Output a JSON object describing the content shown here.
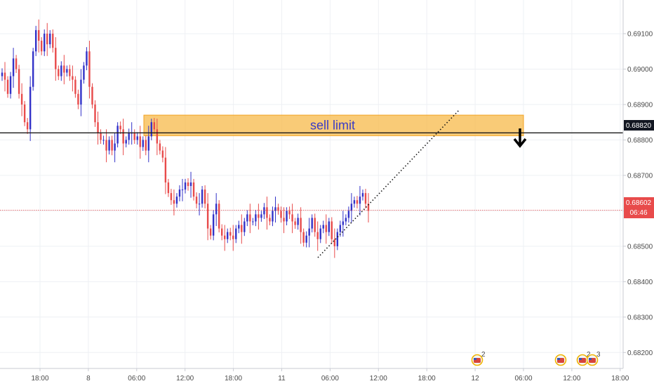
{
  "chart_data": {
    "type": "candlestick",
    "title": "",
    "xlabel": "",
    "ylabel": "",
    "ylim": [
      0.68155,
      0.69195
    ],
    "grid": true,
    "y_ticks": [
      "0.69100",
      "0.69000",
      "0.68900",
      "0.68800",
      "0.68700",
      "0.68600",
      "0.68500",
      "0.68400",
      "0.68300",
      "0.68200"
    ],
    "x_ticks": [
      "18:00",
      "8",
      "06:00",
      "12:00",
      "18:00",
      "11",
      "06:00",
      "12:00",
      "18:00",
      "12",
      "06:00",
      "12:00",
      "18:00"
    ],
    "horizontal_line": {
      "value": 0.6882,
      "label": "0.68820"
    },
    "current_price": {
      "value": 0.68602,
      "label": "0.68602",
      "countdown": "06:46"
    },
    "sell_zone": {
      "label": "sell limit",
      "from": 0.68812,
      "to": 0.6887
    },
    "trendline": {
      "style": "dotted"
    },
    "arrow": {
      "direction": "down"
    },
    "bull_color": "#3232c8",
    "bear_color": "#e84b4b",
    "closes": [
      0.6899,
      0.6897,
      0.6893,
      0.6898,
      0.6903,
      0.69,
      0.6893,
      0.689,
      0.6885,
      0.6883,
      0.6895,
      0.6905,
      0.6911,
      0.6908,
      0.6905,
      0.691,
      0.6907,
      0.691,
      0.6906,
      0.69,
      0.6898,
      0.6901,
      0.6899,
      0.69,
      0.6898,
      0.6897,
      0.6893,
      0.689,
      0.6897,
      0.6901,
      0.6905,
      0.6895,
      0.689,
      0.6885,
      0.6882,
      0.688,
      0.688,
      0.6877,
      0.688,
      0.6877,
      0.6879,
      0.6884,
      0.6883,
      0.6879,
      0.688,
      0.6882,
      0.6882,
      0.688,
      0.6881,
      0.6878,
      0.688,
      0.6877,
      0.6881,
      0.6885,
      0.6883,
      0.6879,
      0.6877,
      0.6875,
      0.6868,
      0.6865,
      0.6863,
      0.6862,
      0.6864,
      0.6866,
      0.6866,
      0.6868,
      0.6867,
      0.6868,
      0.6864,
      0.6862,
      0.6862,
      0.6866,
      0.6862,
      0.6855,
      0.6853,
      0.6859,
      0.6862,
      0.6855,
      0.6853,
      0.6852,
      0.6854,
      0.6853,
      0.6852,
      0.6855,
      0.6856,
      0.6854,
      0.6857,
      0.6859,
      0.6857,
      0.6857,
      0.6859,
      0.6858,
      0.6859,
      0.6861,
      0.6858,
      0.6857,
      0.686,
      0.6861,
      0.686,
      0.6858,
      0.6857,
      0.686,
      0.6859,
      0.6857,
      0.6856,
      0.6858,
      0.6854,
      0.6851,
      0.6853,
      0.6855,
      0.6858,
      0.6854,
      0.6852,
      0.6855,
      0.6856,
      0.6854,
      0.6857,
      0.6852,
      0.685,
      0.6854,
      0.6856,
      0.6857,
      0.6858,
      0.686,
      0.6862,
      0.6863,
      0.6862,
      0.6864,
      0.6865,
      0.6862,
      0.686
    ],
    "ranges": [
      0.00012,
      0.0003,
      0.0001
    ]
  },
  "badges": [
    {
      "label": "2"
    },
    {
      "label": ""
    },
    {
      "label": "2"
    },
    {
      "label": "3"
    }
  ]
}
